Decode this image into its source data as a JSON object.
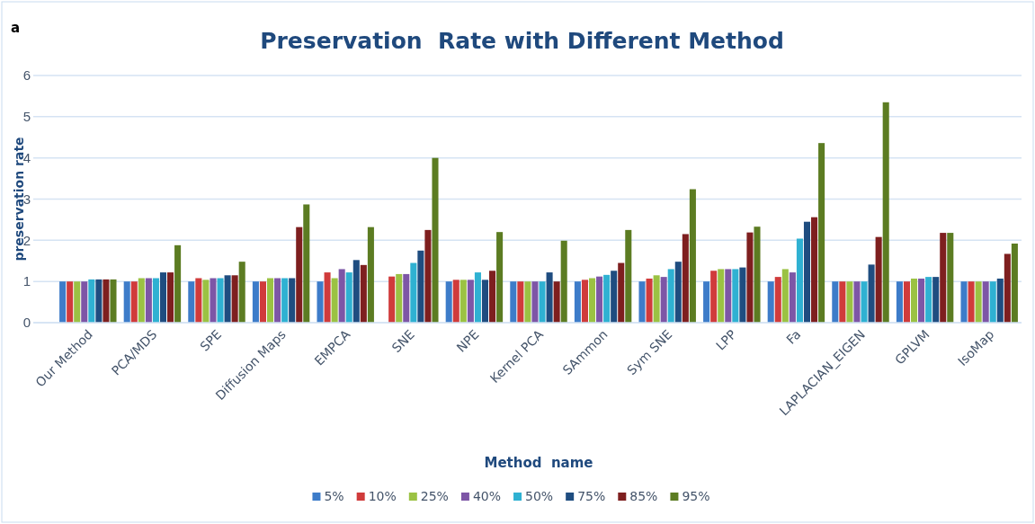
{
  "chart_data": {
    "type": "bar",
    "title": "Preservation  Rate with Different Method",
    "xlabel": "Method  name",
    "ylabel": "preservation rate",
    "annotations": [
      "a"
    ],
    "categories": [
      "Our Method",
      "PCA/MDS",
      "SPE",
      "Diffusion Maps",
      "EMPCA",
      "SNE",
      "NPE",
      "Kernel PCA",
      "SAmmon",
      "Sym SNE",
      "LPP",
      "Fa",
      "LAPLACIAN_EIGEN",
      "GPLVM",
      "IsoMap"
    ],
    "series": [
      {
        "name": "5%",
        "color": "#3d7cc9",
        "values": [
          1,
          1,
          1,
          1,
          1,
          null,
          1,
          1,
          1,
          1,
          1,
          1,
          1,
          1,
          1
        ]
      },
      {
        "name": "10%",
        "color": "#d03b3b",
        "values": [
          1,
          1,
          1.08,
          1,
          1.22,
          1.12,
          1.04,
          1,
          1.04,
          1.07,
          1.26,
          1.11,
          1,
          1,
          1
        ]
      },
      {
        "name": "25%",
        "color": "#9bc243",
        "values": [
          1,
          1.08,
          1.04,
          1.08,
          1.08,
          1.18,
          1.04,
          1,
          1.08,
          1.15,
          1.3,
          1.3,
          1,
          1.07,
          1
        ]
      },
      {
        "name": "40%",
        "color": "#7d56a6",
        "values": [
          1,
          1.08,
          1.08,
          1.08,
          1.3,
          1.18,
          1.04,
          1,
          1.12,
          1.11,
          1.3,
          1.22,
          1,
          1.07,
          1
        ]
      },
      {
        "name": "50%",
        "color": "#2fb1d2",
        "values": [
          1.05,
          1.08,
          1.08,
          1.08,
          1.22,
          1.45,
          1.22,
          1,
          1.16,
          1.3,
          1.3,
          2.04,
          1,
          1.11,
          1
        ]
      },
      {
        "name": "75%",
        "color": "#1f4d80",
        "values": [
          1.05,
          1.22,
          1.15,
          1.08,
          1.52,
          1.75,
          1.04,
          1.22,
          1.26,
          1.48,
          1.34,
          2.45,
          1.41,
          1.11,
          1.07
        ]
      },
      {
        "name": "85%",
        "color": "#7e1f1f",
        "values": [
          1.05,
          1.22,
          1.15,
          2.32,
          1.4,
          2.25,
          1.26,
          1,
          1.45,
          2.15,
          2.19,
          2.56,
          2.08,
          2.18,
          1.67
        ]
      },
      {
        "name": "95%",
        "color": "#5c7c22",
        "values": [
          1.05,
          1.88,
          1.48,
          2.87,
          2.32,
          4.0,
          2.2,
          1.99,
          2.25,
          3.24,
          2.33,
          4.36,
          5.35,
          2.18,
          1.92
        ]
      }
    ],
    "ylim": [
      0,
      6
    ],
    "yticks": [
      0,
      1,
      2,
      3,
      4,
      5,
      6
    ],
    "grid": "y",
    "legend": "bottom"
  }
}
